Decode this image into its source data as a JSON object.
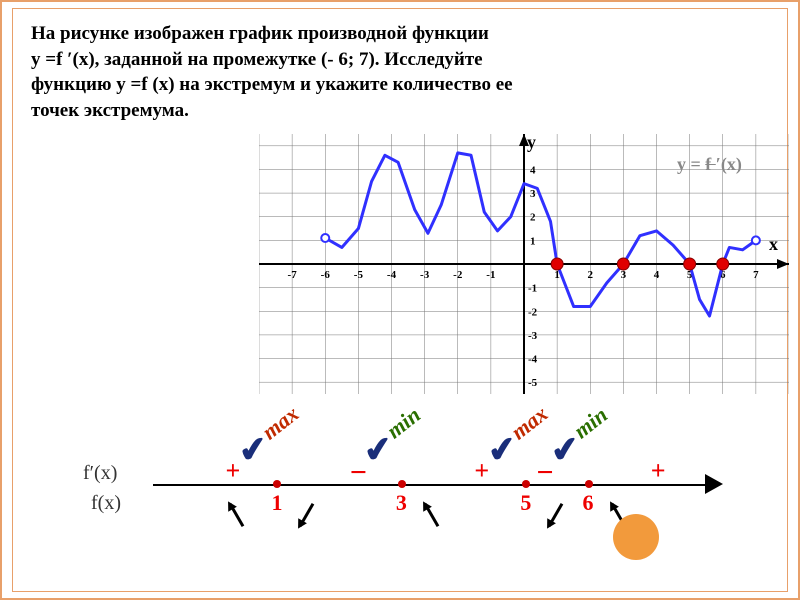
{
  "problem": {
    "line1": "На рисунке изображен график  производной функции",
    "line2": "y  =f ′(x),  заданной  на  промежутке  (- 6;  7).  Исследуйте",
    "line3": "функцию y =f (x) на экстремум и укажите количество ее",
    "line4": "точек экстремума."
  },
  "chart": {
    "x_ticks": [
      "-7",
      "-6",
      "-5",
      "-4",
      "-3",
      "-2",
      "-1",
      "1",
      "2",
      "3",
      "4",
      "5",
      "6",
      "7"
    ],
    "y_ticks_pos": [
      "1",
      "2",
      "3",
      "4"
    ],
    "y_ticks_neg": [
      "-1",
      "-2",
      "-3",
      "-4",
      "-5"
    ],
    "y_axis_label": "y",
    "x_axis_label": "x",
    "equation_label": "y = f ′(x)",
    "xlim": [
      -8,
      8
    ],
    "ylim": [
      -5.5,
      5.5
    ],
    "grid_step": 1,
    "grid_color": "#777",
    "curve_color": "#3030ff",
    "curve_width": 3,
    "curve_points": [
      [
        -6,
        1.1
      ],
      [
        -5.5,
        0.7
      ],
      [
        -5,
        1.5
      ],
      [
        -4.6,
        3.5
      ],
      [
        -4.2,
        4.6
      ],
      [
        -3.8,
        4.3
      ],
      [
        -3.3,
        2.3
      ],
      [
        -2.9,
        1.3
      ],
      [
        -2.5,
        2.5
      ],
      [
        -2,
        4.7
      ],
      [
        -1.6,
        4.6
      ],
      [
        -1.2,
        2.2
      ],
      [
        -0.8,
        1.4
      ],
      [
        -0.4,
        2
      ],
      [
        0,
        3.4
      ],
      [
        0.4,
        3.2
      ],
      [
        0.8,
        1.8
      ],
      [
        1,
        0
      ],
      [
        1.5,
        -1.8
      ],
      [
        2,
        -1.8
      ],
      [
        2.5,
        -0.8
      ],
      [
        3,
        0
      ],
      [
        3.5,
        1.2
      ],
      [
        4,
        1.4
      ],
      [
        4.5,
        0.8
      ],
      [
        5,
        0
      ],
      [
        5.3,
        -1.5
      ],
      [
        5.6,
        -2.2
      ],
      [
        6,
        0
      ],
      [
        6.2,
        0.7
      ],
      [
        6.6,
        0.6
      ],
      [
        7,
        1
      ]
    ],
    "open_circles": [
      [
        -6,
        1.1
      ],
      [
        7,
        1
      ]
    ],
    "zero_dots": [
      1,
      3,
      5,
      6
    ],
    "dot_color": "#e00000"
  },
  "sign": {
    "fprime_label": "f′(x)",
    "f_label": "f(x)",
    "critical": [
      {
        "x": 1,
        "left_sign": "+",
        "right_sign": "−",
        "type": "max"
      },
      {
        "x": 3,
        "left_sign": "−",
        "right_sign": "+",
        "type": "min"
      },
      {
        "x": 5,
        "left_sign": "+",
        "right_sign": "−",
        "type": "max"
      },
      {
        "x": 6,
        "left_sign": "−",
        "right_sign": "+",
        "type": "min"
      }
    ],
    "extra_plus_right": "+",
    "check_color": "#1a2e7a"
  },
  "colors": {
    "border": "#e8a06a",
    "dot_orange": "#f29a3c"
  }
}
